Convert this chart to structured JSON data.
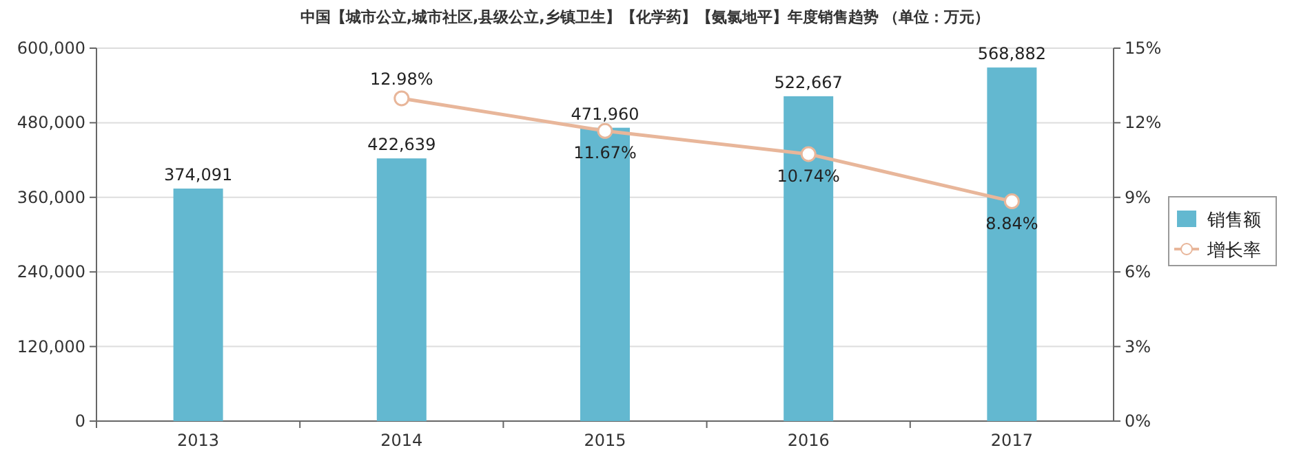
{
  "chart_data": {
    "type": "bar",
    "title": "中国【城市公立,城市社区,县级公立,乡镇卫生】【化学药】【氨氯地平】年度销售趋势 （单位：万元）",
    "categories": [
      "2013",
      "2014",
      "2015",
      "2016",
      "2017"
    ],
    "series": [
      {
        "name": "销售额",
        "color": "#63b8d0",
        "values": [
          374091,
          422639,
          471960,
          522667,
          568882
        ],
        "value_labels": [
          "374,091",
          "422,639",
          "471,960",
          "522,667",
          "568,882"
        ]
      },
      {
        "name": "增长率",
        "type": "line",
        "axis": "y2",
        "color": "#e8b69a",
        "marker": "circle",
        "values": [
          null,
          12.98,
          11.67,
          10.74,
          8.84
        ],
        "value_labels": [
          null,
          "12.98%",
          "11.67%",
          "10.74%",
          "8.84%"
        ]
      }
    ],
    "ylim": [
      0,
      600000
    ],
    "yticks": [
      {
        "value": 0,
        "label": "0"
      },
      {
        "value": 120000,
        "label": "120,000"
      },
      {
        "value": 240000,
        "label": "240,000"
      },
      {
        "value": 360000,
        "label": "360,000"
      },
      {
        "value": 480000,
        "label": "480,000"
      },
      {
        "value": 600000,
        "label": "600,000"
      }
    ],
    "y2lim": [
      0,
      15
    ],
    "y2ticks": [
      {
        "value": 0,
        "label": "0%"
      },
      {
        "value": 3,
        "label": "3%"
      },
      {
        "value": 6,
        "label": "6%"
      },
      {
        "value": 9,
        "label": "9%"
      },
      {
        "value": 12,
        "label": "12%"
      },
      {
        "value": 15,
        "label": "15%"
      }
    ],
    "grid": "y",
    "legend": "right"
  }
}
